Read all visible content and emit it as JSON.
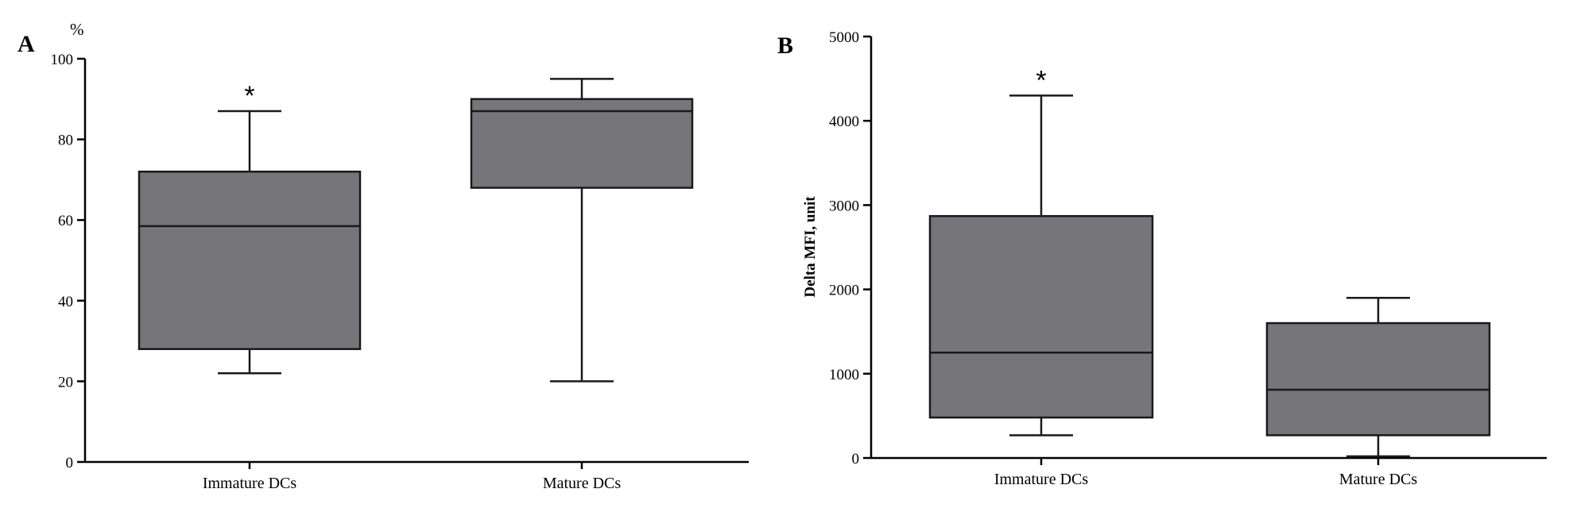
{
  "chart_data": [
    {
      "type": "box",
      "panel_label": "A",
      "unit_label": "%",
      "ylabel": "",
      "xlabel": "",
      "ylim": [
        0,
        100
      ],
      "yticks": [
        "0",
        "20",
        "40",
        "60",
        "80",
        "100"
      ],
      "categories": [
        "Immature DCs",
        "Mature DCs"
      ],
      "boxes": [
        {
          "category": "Immature DCs",
          "min": 22,
          "q1": 28,
          "median": 58.5,
          "q3": 72,
          "max": 87,
          "annotation": "*"
        },
        {
          "category": "Mature DCs",
          "min": 20,
          "q1": 68,
          "median": 87,
          "q3": 90,
          "max": 95,
          "annotation": ""
        }
      ],
      "box_color": "#76757a",
      "grid": false
    },
    {
      "type": "box",
      "panel_label": "B",
      "unit_label": "",
      "ylabel": "Delta MFI, unit",
      "xlabel": "",
      "ylim": [
        0,
        5000
      ],
      "yticks": [
        "0",
        "1000",
        "2000",
        "3000",
        "4000",
        "5000"
      ],
      "categories": [
        "Immature DCs",
        "Mature DCs"
      ],
      "boxes": [
        {
          "category": "Immature DCs",
          "min": 270,
          "q1": 480,
          "median": 1250,
          "q3": 2870,
          "max": 4300,
          "annotation": "*"
        },
        {
          "category": "Mature DCs",
          "min": 20,
          "q1": 270,
          "median": 810,
          "q3": 1600,
          "max": 1900,
          "annotation": ""
        }
      ],
      "box_color": "#76757a",
      "grid": false
    }
  ]
}
